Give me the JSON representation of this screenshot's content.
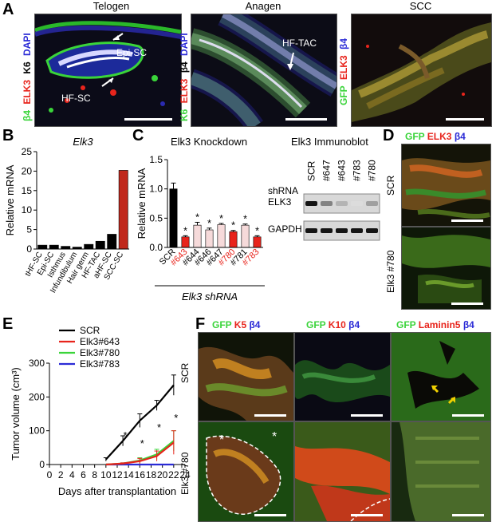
{
  "panel_letters": {
    "a": "A",
    "b": "B",
    "c": "C",
    "d": "D",
    "e": "E",
    "f": "F"
  },
  "colors": {
    "green": "#3ad43a",
    "red": "#e8241c",
    "blue": "#2b2bd6",
    "black": "#000000",
    "gray": "#555555"
  },
  "panel_a": {
    "titles": [
      "Telogen",
      "Anagen",
      "SCC"
    ],
    "telogen": {
      "stains": [
        {
          "text": "β4",
          "color": "#3ad43a"
        },
        {
          "text": "ELK3",
          "color": "#e8241c"
        },
        {
          "text": "K6",
          "color": "#000000"
        },
        {
          "text": "DAPI",
          "color": "#2b2bd6"
        }
      ],
      "annotations": [
        "Epi-SC",
        "HF-SC"
      ]
    },
    "anagen": {
      "stains": [
        {
          "text": "K6",
          "color": "#3ad43a"
        },
        {
          "text": "ELK3",
          "color": "#e8241c"
        },
        {
          "text": "β4",
          "color": "#000000"
        },
        {
          "text": "DAPI",
          "color": "#2b2bd6"
        }
      ],
      "annotations": [
        "HF-TAC"
      ]
    },
    "scc": {
      "stains": [
        {
          "text": "GFP",
          "color": "#3ad43a"
        },
        {
          "text": "ELK3",
          "color": "#e8241c"
        },
        {
          "text": "β4",
          "color": "#2b2bd6"
        }
      ]
    }
  },
  "panel_d": {
    "stains": [
      {
        "text": "GFP",
        "color": "#3ad43a"
      },
      {
        "text": "ELK3",
        "color": "#e8241c"
      },
      {
        "text": "β4",
        "color": "#2b2bd6"
      }
    ],
    "rows": [
      "SCR",
      "Elk3 #780"
    ]
  },
  "panel_f": {
    "columns": [
      [
        {
          "text": "GFP",
          "color": "#3ad43a"
        },
        {
          "text": "K5",
          "color": "#e8241c"
        },
        {
          "text": "β4",
          "color": "#2b2bd6"
        }
      ],
      [
        {
          "text": "GFP",
          "color": "#3ad43a"
        },
        {
          "text": "K10",
          "color": "#e8241c"
        },
        {
          "text": "β4",
          "color": "#2b2bd6"
        }
      ],
      [
        {
          "text": "GFP",
          "color": "#3ad43a"
        },
        {
          "text": "Laminin5",
          "color": "#e8241c"
        },
        {
          "text": "β4",
          "color": "#2b2bd6"
        }
      ]
    ],
    "rows": [
      "SCR",
      "Elk3 #780"
    ],
    "asterisk": "*"
  },
  "immunoblot": {
    "title": "Elk3 Immunoblot",
    "shrna_label": "shRNA",
    "lanes": [
      "SCR",
      "#647",
      "#643",
      "#783",
      "#780"
    ],
    "bands": [
      "ELK3",
      "GAPDH"
    ],
    "elk3_intensity": [
      1.0,
      0.45,
      0.2,
      0.0,
      0.3
    ],
    "gapdh_intensity": [
      1.0,
      1.0,
      1.0,
      1.0,
      1.0
    ]
  },
  "chart_data": [
    {
      "id": "B",
      "type": "bar",
      "title": "Elk3",
      "ylabel": "Relative mRNA",
      "ylim": [
        0,
        25
      ],
      "yticks": [
        0,
        5,
        10,
        15,
        20,
        25
      ],
      "categories": [
        "tHF-SC",
        "Epi-SC",
        "Isthmus",
        "Infundibulum",
        "Hair germ",
        "HF-TAC",
        "aHF-SC",
        "SCC-SC"
      ],
      "values": [
        1.0,
        1.0,
        0.7,
        0.5,
        1.2,
        2.0,
        3.8,
        20.2
      ],
      "bar_colors": [
        "#000000",
        "#000000",
        "#000000",
        "#000000",
        "#000000",
        "#000000",
        "#000000",
        "#c0281c"
      ]
    },
    {
      "id": "C",
      "type": "bar",
      "title": "Elk3 Knockdown",
      "ylabel": "Relative mRNA",
      "xlabel": "Elk3 shRNA",
      "ylim": [
        0,
        1.5
      ],
      "yticks": [
        0,
        0.5,
        1.0,
        1.5
      ],
      "categories": [
        "SCR",
        "#643",
        "#644",
        "#646",
        "#647",
        "#780",
        "#781",
        "#783"
      ],
      "category_colors": [
        "#000000",
        "#e8241c",
        "#000000",
        "#000000",
        "#000000",
        "#e8241c",
        "#000000",
        "#e8241c"
      ],
      "values": [
        1.0,
        0.18,
        0.38,
        0.3,
        0.39,
        0.27,
        0.38,
        0.18
      ],
      "errors": [
        0.1,
        0.02,
        0.05,
        0.03,
        0.02,
        0.02,
        0.02,
        0.02
      ],
      "bar_colors": [
        "#000000",
        "#e8241c",
        "#f6dada",
        "#f6dada",
        "#f6dada",
        "#e8241c",
        "#f6dada",
        "#e8241c"
      ],
      "significance": [
        "",
        "*",
        "*",
        "*",
        "*",
        "*",
        "*",
        "*"
      ]
    },
    {
      "id": "E",
      "type": "line",
      "ylabel": "Tumor volume (cm³)",
      "xlabel": "Days after transplantation",
      "xlim": [
        0,
        24
      ],
      "ylim": [
        0,
        300
      ],
      "xticks": [
        0,
        2,
        4,
        6,
        8,
        10,
        12,
        14,
        16,
        18,
        20,
        22,
        24
      ],
      "yticks": [
        0,
        100,
        200,
        300
      ],
      "series": [
        {
          "name": "SCR",
          "color": "#000000",
          "x": [
            10,
            13,
            16,
            19,
            22
          ],
          "y": [
            15,
            70,
            130,
            175,
            235
          ],
          "err": [
            5,
            15,
            20,
            15,
            30
          ]
        },
        {
          "name": "Elk3#643",
          "color": "#e8241c",
          "x": [
            10,
            13,
            16,
            19,
            22
          ],
          "y": [
            0,
            3,
            10,
            25,
            65
          ],
          "err": [
            0,
            2,
            8,
            15,
            35
          ]
        },
        {
          "name": "Elk3#780",
          "color": "#3ad43a",
          "x": [
            10,
            13,
            16,
            19,
            22
          ],
          "y": [
            0,
            3,
            12,
            30,
            70
          ],
          "err": [
            0,
            2,
            8,
            15,
            30
          ]
        },
        {
          "name": "Elk3#783",
          "color": "#2b2bd6",
          "x": [
            10,
            13,
            16,
            19,
            22
          ],
          "y": [
            0,
            0,
            0,
            0,
            0
          ],
          "err": [
            0,
            0,
            0,
            0,
            0
          ]
        }
      ],
      "significance": [
        {
          "x": 13,
          "label": "*"
        },
        {
          "x": 16,
          "label": "*"
        },
        {
          "x": 19,
          "label": "*"
        },
        {
          "x": 22,
          "label": "*"
        }
      ]
    }
  ]
}
